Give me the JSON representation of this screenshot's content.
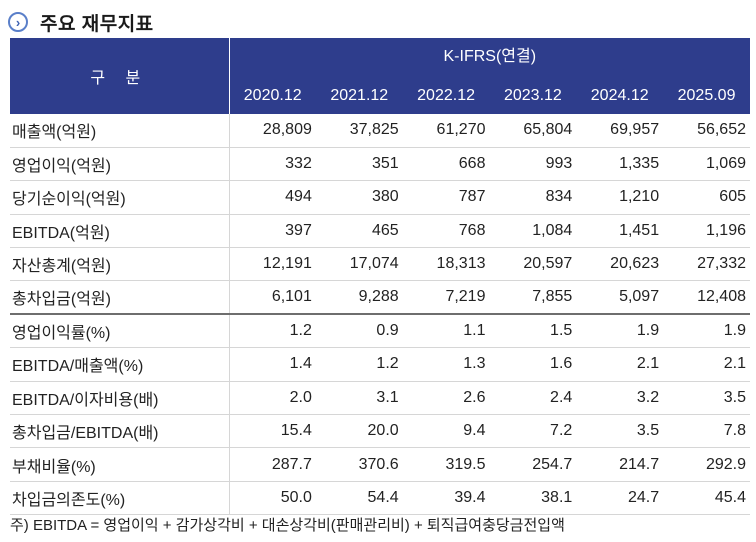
{
  "header": {
    "icon": "chevron-right-circle-icon",
    "title": "주요 재무지표"
  },
  "table": {
    "row_header": "구 분",
    "group_header": "K-IFRS(연결)",
    "columns": [
      "2020.12",
      "2021.12",
      "2022.12",
      "2023.12",
      "2024.12",
      "2025.09"
    ],
    "rows": [
      {
        "label": "매출액(억원)",
        "values": [
          "28,809",
          "37,825",
          "61,270",
          "65,804",
          "69,957",
          "56,652"
        ]
      },
      {
        "label": "영업이익(억원)",
        "values": [
          "332",
          "351",
          "668",
          "993",
          "1,335",
          "1,069"
        ]
      },
      {
        "label": "당기순이익(억원)",
        "values": [
          "494",
          "380",
          "787",
          "834",
          "1,210",
          "605"
        ]
      },
      {
        "label": "EBITDA(억원)",
        "values": [
          "397",
          "465",
          "768",
          "1,084",
          "1,451",
          "1,196"
        ]
      },
      {
        "label": "자산총계(억원)",
        "values": [
          "12,191",
          "17,074",
          "18,313",
          "20,597",
          "20,623",
          "27,332"
        ]
      },
      {
        "label": "총차입금(억원)",
        "values": [
          "6,101",
          "9,288",
          "7,219",
          "7,855",
          "5,097",
          "12,408"
        ]
      },
      {
        "label": "영업이익률(%)",
        "values": [
          "1.2",
          "0.9",
          "1.1",
          "1.5",
          "1.9",
          "1.9"
        ]
      },
      {
        "label": "EBITDA/매출액(%)",
        "values": [
          "1.4",
          "1.2",
          "1.3",
          "1.6",
          "2.1",
          "2.1"
        ]
      },
      {
        "label": "EBITDA/이자비용(배)",
        "values": [
          "2.0",
          "3.1",
          "2.6",
          "2.4",
          "3.2",
          "3.5"
        ]
      },
      {
        "label": "총차입금/EBITDA(배)",
        "values": [
          "15.4",
          "20.0",
          "9.4",
          "7.2",
          "3.5",
          "7.8"
        ]
      },
      {
        "label": "부채비율(%)",
        "values": [
          "287.7",
          "370.6",
          "319.5",
          "254.7",
          "214.7",
          "292.9"
        ]
      },
      {
        "label": "차입금의존도(%)",
        "values": [
          "50.0",
          "54.4",
          "39.4",
          "38.1",
          "24.7",
          "45.4"
        ]
      }
    ]
  },
  "footnote": "주) EBITDA = 영업이익 + 감가상각비 + 대손상각비(판매관리비) + 퇴직급여충당금전입액",
  "colors": {
    "header_bg": "#2e3d8c",
    "icon_accent": "#3f63b3"
  }
}
